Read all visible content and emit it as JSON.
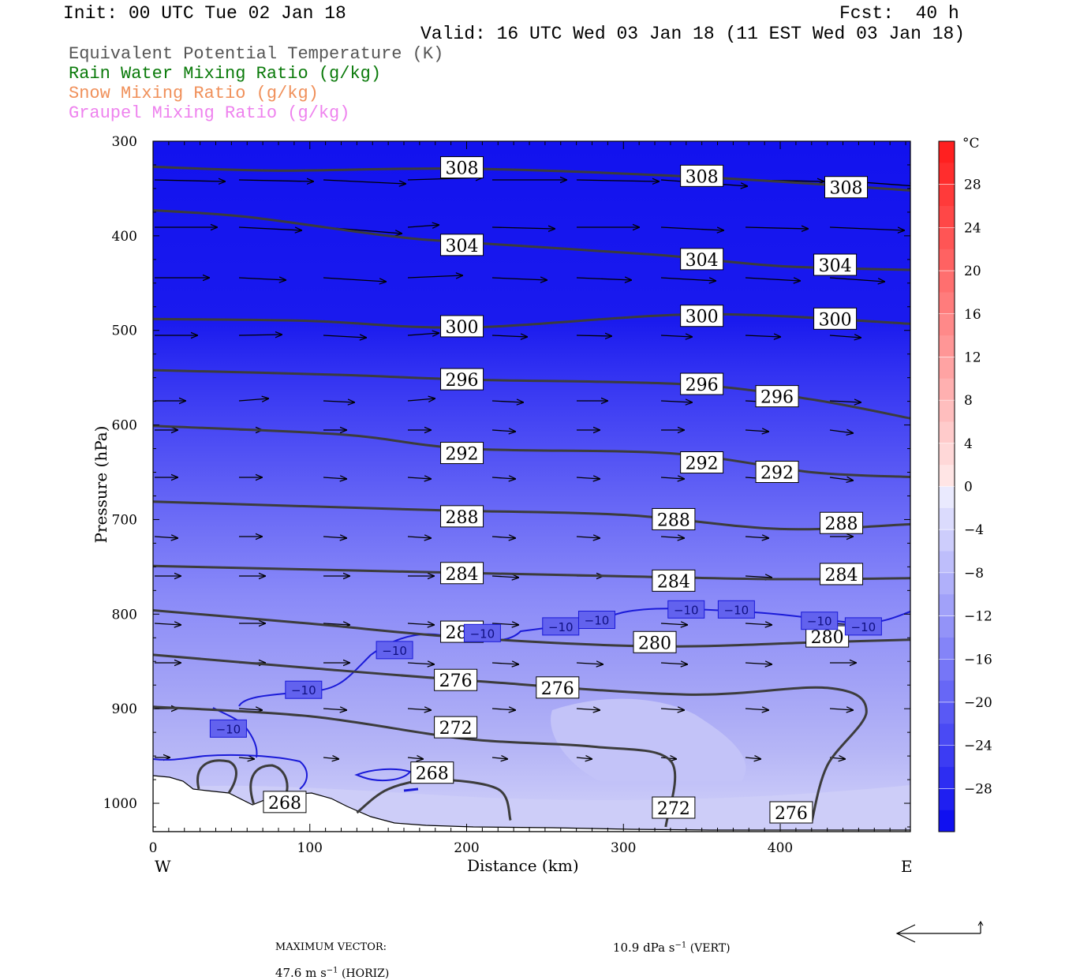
{
  "header": {
    "init": "Init: 00 UTC Tue 02 Jan 18",
    "fcst": "Fcst:  40 h",
    "valid": "Valid: 16 UTC Wed 03 Jan 18 (11 EST Wed 03 Jan 18)"
  },
  "legend": [
    {
      "text": "Equivalent Potential Temperature (K)",
      "color": "#555555"
    },
    {
      "text": "Rain Water Mixing Ratio (g/kg)",
      "color": "#0a7a0a"
    },
    {
      "text": "Snow Mixing Ratio (g/kg)",
      "color": "#f0905a"
    },
    {
      "text": "Graupel Mixing Ratio (g/kg)",
      "color": "#ee82ee"
    }
  ],
  "chart_data": {
    "type": "cross-section",
    "xlabel": "Distance (km)",
    "ylabel": "Pressure (hPa)",
    "xlim": [
      0,
      483
    ],
    "ylim": [
      1030,
      300
    ],
    "x_ticks": [
      0,
      100,
      200,
      300,
      400
    ],
    "y_ticks": [
      300,
      400,
      500,
      600,
      700,
      800,
      900,
      1000
    ],
    "x_end_labels": {
      "left": "W",
      "right": "E"
    },
    "theta_e_contours": [
      {
        "value": 308,
        "points": [
          [
            0,
            327
          ],
          [
            80,
            331
          ],
          [
            200,
            329
          ],
          [
            350,
            338
          ],
          [
            483,
            352
          ]
        ],
        "labels": [
          [
            197,
            328
          ],
          [
            350,
            337
          ],
          [
            442,
            349
          ]
        ]
      },
      {
        "value": 304,
        "points": [
          [
            0,
            373
          ],
          [
            60,
            380
          ],
          [
            150,
            400
          ],
          [
            200,
            407
          ],
          [
            320,
            420
          ],
          [
            400,
            432
          ],
          [
            483,
            436
          ]
        ],
        "labels": [
          [
            197,
            410
          ],
          [
            350,
            425
          ],
          [
            435,
            431
          ]
        ]
      },
      {
        "value": 300,
        "points": [
          [
            0,
            488
          ],
          [
            100,
            490
          ],
          [
            200,
            497
          ],
          [
            350,
            483
          ],
          [
            483,
            493
          ]
        ],
        "labels": [
          [
            197,
            496
          ],
          [
            350,
            485
          ],
          [
            435,
            488
          ]
        ]
      },
      {
        "value": 296,
        "points": [
          [
            0,
            542
          ],
          [
            120,
            547
          ],
          [
            200,
            552
          ],
          [
            340,
            557
          ],
          [
            420,
            573
          ],
          [
            483,
            593
          ]
        ],
        "labels": [
          [
            197,
            552
          ],
          [
            350,
            557
          ],
          [
            398,
            570
          ]
        ]
      },
      {
        "value": 292,
        "points": [
          [
            0,
            601
          ],
          [
            120,
            610
          ],
          [
            200,
            625
          ],
          [
            330,
            630
          ],
          [
            420,
            650
          ],
          [
            483,
            655
          ]
        ],
        "labels": [
          [
            197,
            630
          ],
          [
            350,
            640
          ],
          [
            398,
            650
          ]
        ]
      },
      {
        "value": 288,
        "points": [
          [
            0,
            681
          ],
          [
            180,
            690
          ],
          [
            300,
            695
          ],
          [
            400,
            710
          ],
          [
            483,
            705
          ]
        ],
        "labels": [
          [
            197,
            697
          ],
          [
            332,
            700
          ],
          [
            439,
            704
          ]
        ]
      },
      {
        "value": 284,
        "points": [
          [
            0,
            749
          ],
          [
            160,
            755
          ],
          [
            300,
            760
          ],
          [
            400,
            763
          ],
          [
            483,
            762
          ]
        ],
        "labels": [
          [
            197,
            757
          ],
          [
            332,
            765
          ],
          [
            439,
            758
          ]
        ]
      },
      {
        "value": 280,
        "points": [
          [
            0,
            796
          ],
          [
            100,
            810
          ],
          [
            200,
            825
          ],
          [
            320,
            834
          ],
          [
            420,
            830
          ],
          [
            483,
            827
          ]
        ],
        "labels": [
          [
            197,
            819
          ],
          [
            320,
            830
          ],
          [
            430,
            824
          ]
        ]
      },
      {
        "value": 276,
        "points": [
          [
            0,
            843
          ],
          [
            100,
            857
          ],
          [
            200,
            870
          ],
          [
            340,
            885
          ],
          [
            430,
            878
          ],
          [
            455,
            903
          ],
          [
            430,
            960
          ],
          [
            420,
            1020
          ]
        ],
        "labels": [
          [
            193,
            870
          ],
          [
            258,
            878
          ],
          [
            407,
            1010
          ]
        ]
      },
      {
        "value": 272,
        "points": [
          [
            0,
            898
          ],
          [
            100,
            908
          ],
          [
            200,
            932
          ],
          [
            280,
            940
          ],
          [
            330,
            955
          ],
          [
            327,
            1025
          ]
        ],
        "labels": [
          [
            193,
            920
          ],
          [
            332,
            1005
          ]
        ]
      },
      {
        "value": 268,
        "points": [
          [
            130,
            1010
          ],
          [
            150,
            985
          ],
          [
            180,
            975
          ],
          [
            220,
            985
          ],
          [
            228,
            1018
          ]
        ],
        "labels": [
          [
            178,
            968
          ],
          [
            84,
            999
          ]
        ]
      }
    ],
    "temperature_contour": {
      "value": -10,
      "labels": [
        [
          48,
          921
        ],
        [
          96,
          880
        ],
        [
          154,
          838
        ],
        [
          210,
          820
        ],
        [
          260,
          813
        ],
        [
          283,
          806
        ],
        [
          340,
          795
        ],
        [
          372,
          795
        ],
        [
          425,
          807
        ],
        [
          453,
          813
        ]
      ]
    },
    "colorbar": {
      "unit": "°C",
      "ticks": [
        28,
        24,
        20,
        16,
        12,
        8,
        4,
        0,
        -4,
        -8,
        -12,
        -16,
        -20,
        -24,
        -28
      ],
      "range": [
        -32,
        32
      ]
    }
  },
  "footer": {
    "max_vector_label": "MAXIMUM VECTOR:",
    "horiz_value": "47.6 m s",
    "horiz_unit_exp": "−1",
    "horiz_tag": " (HORIZ)",
    "vert_value": "10.9 dPa s",
    "vert_unit_exp": "−1",
    "vert_tag": " (VERT)"
  }
}
